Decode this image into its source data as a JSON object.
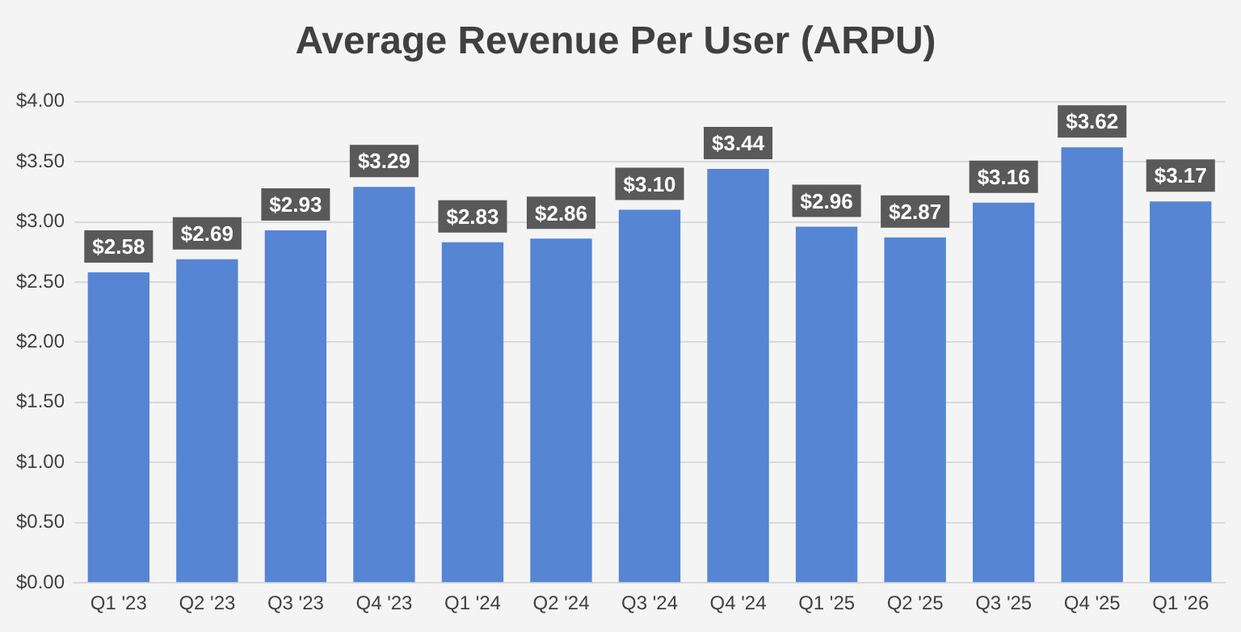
{
  "chart_data": {
    "type": "bar",
    "title": "Average Revenue Per User (ARPU)",
    "categories": [
      "Q1 '23",
      "Q2 '23",
      "Q3 '23",
      "Q4 '23",
      "Q1 '24",
      "Q2 '24",
      "Q3 '24",
      "Q4 '24",
      "Q1 '25",
      "Q2 '25",
      "Q3 '25",
      "Q4 '25",
      "Q1 '26"
    ],
    "values": [
      2.58,
      2.69,
      2.93,
      3.29,
      2.83,
      2.86,
      3.1,
      3.44,
      2.96,
      2.87,
      3.16,
      3.62,
      3.17
    ],
    "value_labels": [
      "$2.58",
      "$2.69",
      "$2.93",
      "$3.29",
      "$2.83",
      "$2.86",
      "$3.10",
      "$3.44",
      "$2.96",
      "$2.87",
      "$3.16",
      "$3.62",
      "$3.17"
    ],
    "color": "#5585d3",
    "ylim": [
      0,
      4
    ],
    "yticks": [
      {
        "value": 0,
        "label": "$0.00"
      },
      {
        "value": 0.5,
        "label": "$0.50"
      },
      {
        "value": 1,
        "label": "$1.00"
      },
      {
        "value": 1.5,
        "label": "$1.50"
      },
      {
        "value": 2,
        "label": "$2.00"
      },
      {
        "value": 2.5,
        "label": "$2.50"
      },
      {
        "value": 3,
        "label": "$3.00"
      },
      {
        "value": 3.5,
        "label": "$3.50"
      },
      {
        "value": 4,
        "label": "$4.00"
      }
    ],
    "grid": "y",
    "legend": false
  }
}
